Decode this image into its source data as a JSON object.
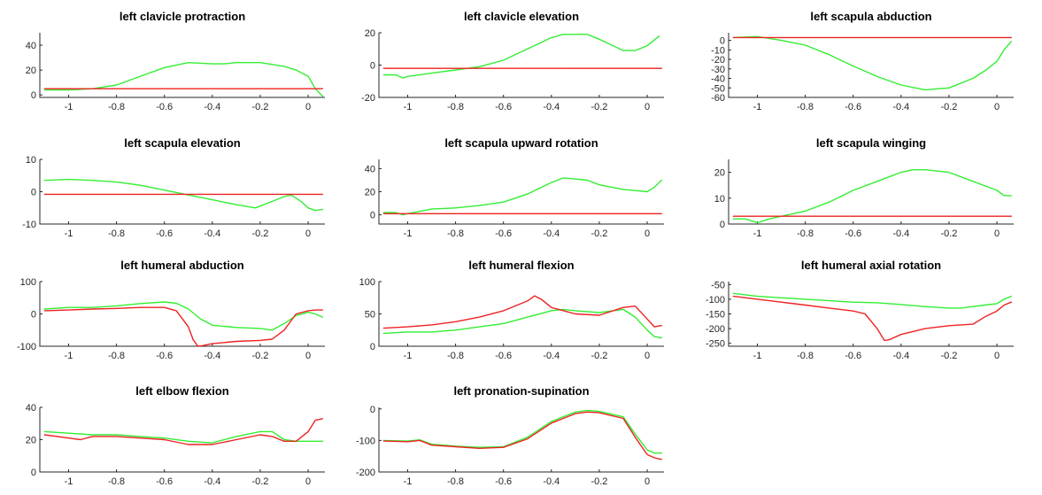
{
  "colors": {
    "green": "#33ee33",
    "red": "#ee2222",
    "axis": "#262626",
    "background": "#ffffff"
  },
  "chart_data": [
    {
      "type": "line",
      "title": "left clavicle protraction",
      "xlim": [
        -1.12,
        0.07
      ],
      "ylim": [
        -2,
        50
      ],
      "xticks": [
        -1,
        -0.8,
        -0.6,
        -0.4,
        -0.2,
        0
      ],
      "xtick_labels": [
        "-1",
        "-0.8",
        "-0.6",
        "-0.4",
        "-0.2",
        "0"
      ],
      "yticks": [
        0,
        20,
        40
      ],
      "ytick_labels": [
        "0",
        "20",
        "40"
      ],
      "series": [
        {
          "color": "green",
          "x": [
            -1.1,
            -1.0,
            -0.9,
            -0.8,
            -0.7,
            -0.6,
            -0.5,
            -0.4,
            -0.35,
            -0.3,
            -0.2,
            -0.1,
            -0.05,
            0.0,
            0.03,
            0.06
          ],
          "y": [
            4,
            4,
            5,
            8,
            15,
            22,
            26,
            25,
            25,
            26,
            26,
            23,
            20,
            15,
            5,
            -1
          ]
        },
        {
          "color": "red",
          "x": [
            -1.1,
            0.06
          ],
          "y": [
            5,
            5
          ]
        }
      ]
    },
    {
      "type": "line",
      "title": "left clavicle elevation",
      "xlim": [
        -1.12,
        0.07
      ],
      "ylim": [
        -20,
        20
      ],
      "xticks": [
        -1,
        -0.8,
        -0.6,
        -0.4,
        -0.2,
        0
      ],
      "xtick_labels": [
        "-1",
        "-0.8",
        "-0.6",
        "-0.4",
        "-0.2",
        "0"
      ],
      "yticks": [
        -20,
        0,
        20
      ],
      "ytick_labels": [
        "-20",
        "0",
        "20"
      ],
      "series": [
        {
          "color": "green",
          "x": [
            -1.1,
            -1.05,
            -1.02,
            -1.0,
            -0.9,
            -0.8,
            -0.7,
            -0.6,
            -0.5,
            -0.4,
            -0.35,
            -0.3,
            -0.25,
            -0.2,
            -0.1,
            -0.05,
            0.0,
            0.05
          ],
          "y": [
            -6,
            -6,
            -8,
            -7,
            -5,
            -3,
            -1,
            3,
            10,
            17,
            19,
            19,
            19,
            16,
            9,
            9,
            12,
            18
          ]
        },
        {
          "color": "red",
          "x": [
            -1.1,
            0.06
          ],
          "y": [
            -2,
            -2
          ]
        }
      ]
    },
    {
      "type": "line",
      "title": "left scapula abduction",
      "xlim": [
        -1.12,
        0.07
      ],
      "ylim": [
        -60,
        8
      ],
      "xticks": [
        -1,
        -0.8,
        -0.6,
        -0.4,
        -0.2,
        0
      ],
      "xtick_labels": [
        "-1",
        "-0.8",
        "-0.6",
        "-0.4",
        "-0.2",
        "0"
      ],
      "yticks": [
        -60,
        -50,
        -40,
        -30,
        -20,
        -10,
        0
      ],
      "ytick_labels": [
        "-60",
        "-50",
        "-40",
        "-30",
        "-20",
        "-10",
        "0"
      ],
      "series": [
        {
          "color": "green",
          "x": [
            -1.1,
            -1.0,
            -0.9,
            -0.8,
            -0.7,
            -0.6,
            -0.5,
            -0.4,
            -0.3,
            -0.25,
            -0.2,
            -0.1,
            -0.05,
            0.0,
            0.03,
            0.06
          ],
          "y": [
            3,
            4,
            0,
            -5,
            -15,
            -27,
            -38,
            -47,
            -52,
            -51,
            -50,
            -40,
            -32,
            -22,
            -10,
            -1
          ]
        },
        {
          "color": "red",
          "x": [
            -1.1,
            0.06
          ],
          "y": [
            3,
            3
          ]
        }
      ]
    },
    {
      "type": "line",
      "title": "left scapula elevation",
      "xlim": [
        -1.12,
        0.07
      ],
      "ylim": [
        -10,
        10
      ],
      "xticks": [
        -1,
        -0.8,
        -0.6,
        -0.4,
        -0.2,
        0
      ],
      "xtick_labels": [
        "-1",
        "-0.8",
        "-0.6",
        "-0.4",
        "-0.2",
        "0"
      ],
      "yticks": [
        -10,
        0,
        10
      ],
      "ytick_labels": [
        "-10",
        "0",
        "10"
      ],
      "series": [
        {
          "color": "green",
          "x": [
            -1.1,
            -1.0,
            -0.9,
            -0.8,
            -0.7,
            -0.6,
            -0.5,
            -0.4,
            -0.3,
            -0.22,
            -0.15,
            -0.1,
            -0.07,
            -0.03,
            0.0,
            0.03,
            0.06
          ],
          "y": [
            3.5,
            3.8,
            3.5,
            3,
            2,
            0.5,
            -1,
            -2.5,
            -4,
            -5,
            -3,
            -1.5,
            -1,
            -3,
            -5,
            -5.8,
            -5.5
          ]
        },
        {
          "color": "red",
          "x": [
            -1.1,
            0.06
          ],
          "y": [
            -0.8,
            -0.8
          ]
        }
      ]
    },
    {
      "type": "line",
      "title": "left scapula upward rotation",
      "xlim": [
        -1.12,
        0.07
      ],
      "ylim": [
        -8,
        48
      ],
      "xticks": [
        -1,
        -0.8,
        -0.6,
        -0.4,
        -0.2,
        0
      ],
      "xtick_labels": [
        "-1",
        "-0.8",
        "-0.6",
        "-0.4",
        "-0.2",
        "0"
      ],
      "yticks": [
        0,
        20,
        40
      ],
      "ytick_labels": [
        "0",
        "20",
        "40"
      ],
      "series": [
        {
          "color": "green",
          "x": [
            -1.1,
            -1.05,
            -1.02,
            -1.0,
            -0.95,
            -0.9,
            -0.8,
            -0.7,
            -0.6,
            -0.5,
            -0.4,
            -0.35,
            -0.3,
            -0.25,
            -0.2,
            -0.1,
            -0.05,
            0.0,
            0.03,
            0.06
          ],
          "y": [
            2,
            2,
            0,
            1,
            3,
            5,
            6,
            8,
            11,
            18,
            28,
            32,
            31,
            30,
            26,
            22,
            21,
            20,
            24,
            30
          ]
        },
        {
          "color": "red",
          "x": [
            -1.1,
            0.06
          ],
          "y": [
            1,
            1
          ]
        }
      ]
    },
    {
      "type": "line",
      "title": "left scapula winging",
      "xlim": [
        -1.12,
        0.07
      ],
      "ylim": [
        0,
        25
      ],
      "xticks": [
        -1,
        -0.8,
        -0.6,
        -0.4,
        -0.2,
        0
      ],
      "xtick_labels": [
        "-1",
        "-0.8",
        "-0.6",
        "-0.4",
        "-0.2",
        "0"
      ],
      "yticks": [
        0,
        10,
        20
      ],
      "ytick_labels": [
        "0",
        "10",
        "20"
      ],
      "series": [
        {
          "color": "green",
          "x": [
            -1.1,
            -1.05,
            -1.0,
            -0.95,
            -0.9,
            -0.8,
            -0.7,
            -0.6,
            -0.5,
            -0.4,
            -0.35,
            -0.3,
            -0.2,
            -0.1,
            0.0,
            0.03,
            0.06
          ],
          "y": [
            2,
            2,
            0.5,
            2,
            3,
            5,
            8.5,
            13,
            16.5,
            20,
            21,
            21,
            20,
            16.5,
            13,
            11,
            11
          ]
        },
        {
          "color": "red",
          "x": [
            -1.1,
            0.06
          ],
          "y": [
            3,
            3
          ]
        }
      ]
    },
    {
      "type": "line",
      "title": "left humeral abduction",
      "xlim": [
        -1.12,
        0.07
      ],
      "ylim": [
        -100,
        100
      ],
      "xticks": [
        -1,
        -0.8,
        -0.6,
        -0.4,
        -0.2,
        0
      ],
      "xtick_labels": [
        "-1",
        "-0.8",
        "-0.6",
        "-0.4",
        "-0.2",
        "0"
      ],
      "yticks": [
        -100,
        0,
        100
      ],
      "ytick_labels": [
        "-100",
        "0",
        "100"
      ],
      "series": [
        {
          "color": "green",
          "x": [
            -1.1,
            -1.0,
            -0.9,
            -0.8,
            -0.7,
            -0.6,
            -0.55,
            -0.5,
            -0.45,
            -0.4,
            -0.3,
            -0.2,
            -0.15,
            -0.1,
            -0.05,
            0.0,
            0.03,
            0.06
          ],
          "y": [
            15,
            20,
            20,
            25,
            32,
            37,
            33,
            15,
            -15,
            -35,
            -42,
            -45,
            -50,
            -30,
            -5,
            5,
            0,
            -10
          ]
        },
        {
          "color": "red",
          "x": [
            -1.1,
            -1.0,
            -0.9,
            -0.8,
            -0.7,
            -0.6,
            -0.55,
            -0.5,
            -0.48,
            -0.46,
            -0.44,
            -0.4,
            -0.3,
            -0.2,
            -0.15,
            -0.1,
            -0.05,
            0.0,
            0.03,
            0.06
          ],
          "y": [
            10,
            12,
            15,
            17,
            20,
            20,
            10,
            -40,
            -80,
            -100,
            -98,
            -92,
            -85,
            -82,
            -78,
            -50,
            0,
            10,
            12,
            12
          ]
        }
      ]
    },
    {
      "type": "line",
      "title": "left humeral flexion",
      "xlim": [
        -1.12,
        0.07
      ],
      "ylim": [
        0,
        100
      ],
      "xticks": [
        -1,
        -0.8,
        -0.6,
        -0.4,
        -0.2,
        0
      ],
      "xtick_labels": [
        "-1",
        "-0.8",
        "-0.6",
        "-0.4",
        "-0.2",
        "0"
      ],
      "yticks": [
        0,
        50,
        100
      ],
      "ytick_labels": [
        "0",
        "50",
        "100"
      ],
      "series": [
        {
          "color": "green",
          "x": [
            -1.1,
            -1.0,
            -0.9,
            -0.8,
            -0.7,
            -0.6,
            -0.5,
            -0.4,
            -0.35,
            -0.3,
            -0.2,
            -0.1,
            -0.05,
            0.0,
            0.03,
            0.06
          ],
          "y": [
            20,
            22,
            22,
            25,
            30,
            35,
            45,
            55,
            57,
            55,
            52,
            57,
            45,
            25,
            15,
            13
          ]
        },
        {
          "color": "red",
          "x": [
            -1.1,
            -1.0,
            -0.9,
            -0.8,
            -0.7,
            -0.6,
            -0.5,
            -0.47,
            -0.44,
            -0.4,
            -0.3,
            -0.2,
            -0.1,
            -0.05,
            0.0,
            0.03,
            0.06
          ],
          "y": [
            28,
            30,
            33,
            38,
            45,
            55,
            70,
            78,
            72,
            60,
            50,
            48,
            60,
            62,
            42,
            30,
            32
          ]
        }
      ]
    },
    {
      "type": "line",
      "title": "left humeral axial rotation",
      "xlim": [
        -1.12,
        0.07
      ],
      "ylim": [
        -260,
        -40
      ],
      "xticks": [
        -1,
        -0.8,
        -0.6,
        -0.4,
        -0.2,
        0
      ],
      "xtick_labels": [
        "-1",
        "-0.8",
        "-0.6",
        "-0.4",
        "-0.2",
        "0"
      ],
      "yticks": [
        -250,
        -200,
        -150,
        -100,
        -50
      ],
      "ytick_labels": [
        "-250",
        "-200",
        "-150",
        "-100",
        "-50"
      ],
      "series": [
        {
          "color": "green",
          "x": [
            -1.1,
            -1.0,
            -0.9,
            -0.8,
            -0.7,
            -0.6,
            -0.5,
            -0.4,
            -0.3,
            -0.2,
            -0.15,
            -0.1,
            -0.05,
            0.0,
            0.03,
            0.06
          ],
          "y": [
            -80,
            -90,
            -95,
            -100,
            -105,
            -110,
            -112,
            -118,
            -125,
            -130,
            -130,
            -125,
            -120,
            -115,
            -100,
            -90
          ]
        },
        {
          "color": "red",
          "x": [
            -1.1,
            -1.0,
            -0.9,
            -0.8,
            -0.7,
            -0.6,
            -0.55,
            -0.5,
            -0.47,
            -0.45,
            -0.4,
            -0.3,
            -0.2,
            -0.1,
            -0.05,
            0.0,
            0.03,
            0.06
          ],
          "y": [
            -90,
            -100,
            -110,
            -120,
            -130,
            -140,
            -150,
            -200,
            -240,
            -238,
            -220,
            -200,
            -190,
            -185,
            -160,
            -140,
            -120,
            -110
          ]
        }
      ]
    },
    {
      "type": "line",
      "title": "left elbow flexion",
      "xlim": [
        -1.12,
        0.07
      ],
      "ylim": [
        0,
        40
      ],
      "xticks": [
        -1,
        -0.8,
        -0.6,
        -0.4,
        -0.2,
        0
      ],
      "xtick_labels": [
        "-1",
        "-0.8",
        "-0.6",
        "-0.4",
        "-0.2",
        "0"
      ],
      "yticks": [
        0,
        20,
        40
      ],
      "ytick_labels": [
        "0",
        "20",
        "40"
      ],
      "series": [
        {
          "color": "green",
          "x": [
            -1.1,
            -1.0,
            -0.9,
            -0.8,
            -0.7,
            -0.6,
            -0.5,
            -0.4,
            -0.3,
            -0.2,
            -0.15,
            -0.1,
            -0.05,
            0.0,
            0.06
          ],
          "y": [
            25,
            24,
            23,
            23,
            22,
            21,
            19,
            18,
            22,
            25,
            25,
            20,
            19,
            19,
            19
          ]
        },
        {
          "color": "red",
          "x": [
            -1.1,
            -1.0,
            -0.95,
            -0.9,
            -0.8,
            -0.7,
            -0.6,
            -0.5,
            -0.4,
            -0.3,
            -0.2,
            -0.15,
            -0.1,
            -0.05,
            0.0,
            0.03,
            0.06
          ],
          "y": [
            23,
            21,
            20,
            22,
            22,
            21,
            20,
            17,
            17,
            20,
            23,
            22,
            19,
            19,
            25,
            32,
            33
          ]
        }
      ]
    },
    {
      "type": "line",
      "title": "left pronation-supination",
      "xlim": [
        -1.12,
        0.07
      ],
      "ylim": [
        -200,
        5
      ],
      "xticks": [
        -1,
        -0.8,
        -0.6,
        -0.4,
        -0.2,
        0
      ],
      "xtick_labels": [
        "-1",
        "-0.8",
        "-0.6",
        "-0.4",
        "-0.2",
        "0"
      ],
      "yticks": [
        -200,
        -100,
        0
      ],
      "ytick_labels": [
        "-200",
        "-100",
        "0"
      ],
      "series": [
        {
          "color": "green",
          "x": [
            -1.1,
            -1.0,
            -0.95,
            -0.9,
            -0.8,
            -0.7,
            -0.6,
            -0.5,
            -0.4,
            -0.3,
            -0.25,
            -0.2,
            -0.1,
            -0.05,
            0.0,
            0.03,
            0.06
          ],
          "y": [
            -100,
            -102,
            -98,
            -112,
            -118,
            -122,
            -120,
            -90,
            -40,
            -10,
            -5,
            -8,
            -25,
            -80,
            -130,
            -140,
            -140
          ]
        },
        {
          "color": "red",
          "x": [
            -1.1,
            -1.0,
            -0.95,
            -0.9,
            -0.8,
            -0.7,
            -0.6,
            -0.5,
            -0.4,
            -0.3,
            -0.25,
            -0.2,
            -0.1,
            -0.05,
            0.0,
            0.03,
            0.06
          ],
          "y": [
            -102,
            -104,
            -100,
            -115,
            -120,
            -125,
            -122,
            -95,
            -45,
            -15,
            -10,
            -12,
            -30,
            -90,
            -145,
            -155,
            -160
          ]
        }
      ]
    }
  ]
}
